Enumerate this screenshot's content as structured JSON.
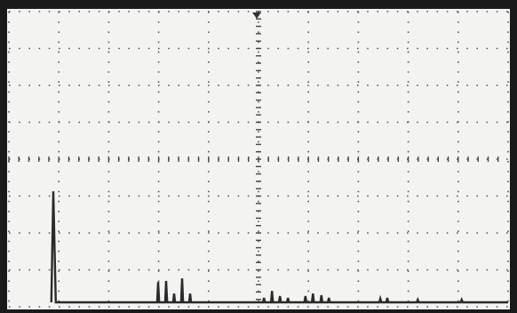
{
  "chart_data": {
    "type": "line",
    "x": [
      0.85,
      0.89,
      0.94,
      2.97,
      2.99,
      3.01,
      3.13,
      3.15,
      3.17,
      3.29,
      3.31,
      3.33,
      3.45,
      3.47,
      3.49,
      3.61,
      3.63,
      3.65,
      5.09,
      5.11,
      5.13,
      5.25,
      5.27,
      5.29,
      5.41,
      5.43,
      5.45,
      5.57,
      5.59,
      5.61,
      5.92,
      5.94,
      5.96,
      6.07,
      6.09,
      6.11,
      6.24,
      6.26,
      6.28,
      6.39,
      6.41,
      6.43,
      7.42,
      7.44,
      7.46,
      7.56,
      7.58,
      7.6,
      8.17,
      8.19,
      8.21,
      9.05,
      9.07,
      9.09,
      10
    ],
    "values": [
      0.12,
      3.13,
      0.12,
      0.12,
      0.67,
      0.12,
      0.12,
      0.7,
      0.12,
      0.12,
      0.36,
      0.12,
      0.12,
      0.77,
      0.12,
      0.12,
      0.36,
      0.12,
      0.12,
      0.24,
      0.12,
      0.12,
      0.43,
      0.12,
      0.12,
      0.29,
      0.12,
      0.12,
      0.24,
      0.12,
      0.12,
      0.29,
      0.12,
      0.12,
      0.36,
      0.12,
      0.12,
      0.31,
      0.12,
      0.12,
      0.24,
      0.12,
      0.12,
      0.22,
      0.12,
      0.12,
      0.24,
      0.12,
      0.12,
      0.19,
      0.12,
      0.12,
      0.19,
      0.12,
      0.12
    ],
    "color": "#2a2a2a",
    "xlim": [
      0,
      10
    ],
    "ylim": [
      0,
      8
    ],
    "xticks": [
      0,
      1,
      2,
      3,
      4,
      5,
      6,
      7,
      8,
      9,
      10
    ],
    "yticks": [
      0,
      1,
      2,
      3,
      4,
      5,
      6,
      7,
      8
    ],
    "grid": true
  }
}
